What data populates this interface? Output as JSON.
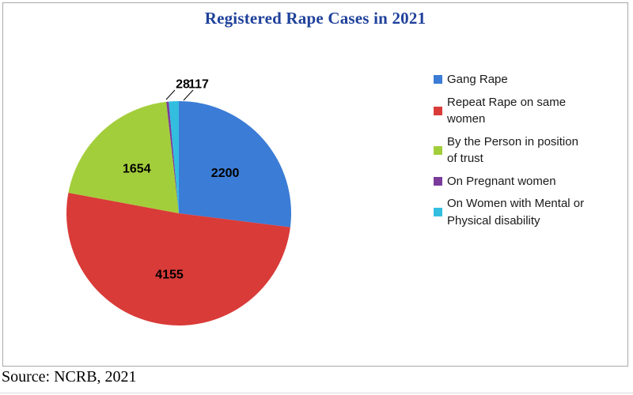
{
  "window": {
    "title": "Registered Rape Cases in 2021",
    "source_note": "Source: NCRB, 2021"
  },
  "chart_data": {
    "type": "pie",
    "title": "Registered Rape Cases in 2021",
    "title_color": "#1F419B",
    "total": 8154,
    "legend_position": "right",
    "start_angle_deg": 0,
    "direction": "clockwise",
    "border_color": "#A9A9A9",
    "slices": [
      {
        "label": "Gang Rape",
        "value": 2200,
        "data_label": "2200",
        "color": "#3B7CD6",
        "label_placement": "inside"
      },
      {
        "label": "Repeat Rape on same women",
        "value": 4155,
        "data_label": "4155",
        "color": "#D93B38",
        "label_placement": "inside"
      },
      {
        "label": "By the Person in position of trust",
        "value": 1654,
        "data_label": "1654",
        "color": "#A3CE3B",
        "label_placement": "inside"
      },
      {
        "label": "On Pregnant women",
        "value": 28,
        "data_label": "28",
        "color": "#7A3B9B",
        "label_placement": "outside"
      },
      {
        "label": "On Women with Mental or Physical disability",
        "value": 117,
        "data_label": "117",
        "color": "#33BEE0",
        "label_placement": "outside"
      }
    ]
  }
}
